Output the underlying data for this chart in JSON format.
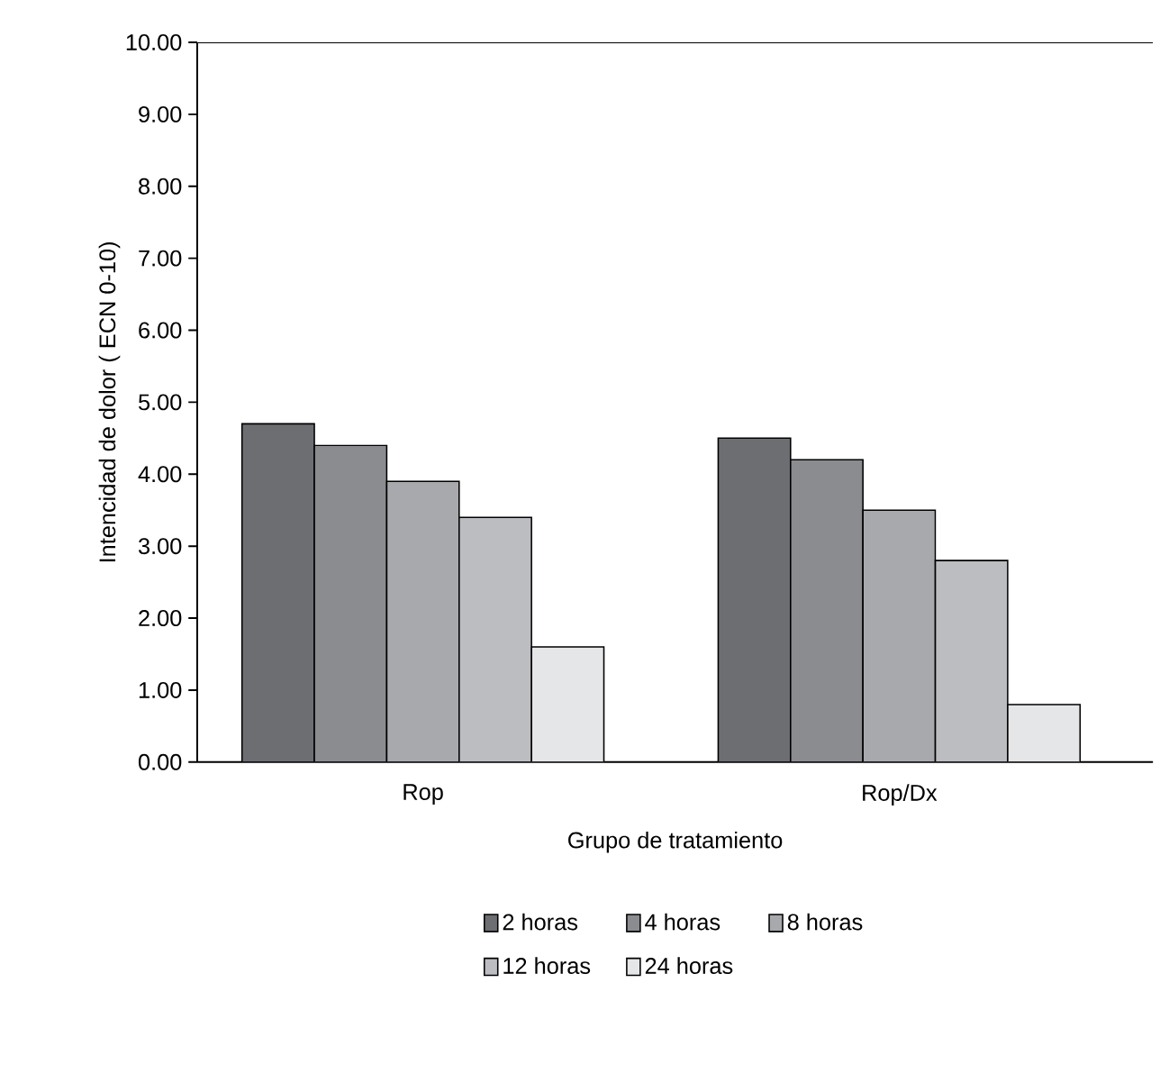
{
  "chart_data": {
    "type": "bar",
    "xlabel": "Grupo de tratamiento",
    "ylabel": "Intencidad de dolor ( ECN 0-10)",
    "categories": [
      "Rop",
      "Rop/Dx"
    ],
    "series": [
      {
        "name": "2 horas",
        "color": "#6d6e72",
        "values": [
          4.7,
          4.5
        ]
      },
      {
        "name": "4 horas",
        "color": "#8b8c90",
        "values": [
          4.4,
          4.2
        ]
      },
      {
        "name": "8 horas",
        "color": "#a8a9ac",
        "values": [
          3.9,
          3.5
        ]
      },
      {
        "name": "12 horas",
        "color": "#bcbdc0",
        "values": [
          3.4,
          2.8
        ]
      },
      {
        "name": "24 horas",
        "color": "#e5e6e7",
        "values": [
          1.6,
          0.8
        ]
      }
    ],
    "ylim": [
      0,
      10
    ],
    "yticks": [
      {
        "value": 0,
        "label": "0.00"
      },
      {
        "value": 1,
        "label": "1.00"
      },
      {
        "value": 2,
        "label": "2.00"
      },
      {
        "value": 3,
        "label": "3.00"
      },
      {
        "value": 4,
        "label": "4.00"
      },
      {
        "value": 5,
        "label": "5.00"
      },
      {
        "value": 6,
        "label": "6.00"
      },
      {
        "value": 7,
        "label": "7.00"
      },
      {
        "value": 8,
        "label": "8.00"
      },
      {
        "value": 9,
        "label": "9.00"
      },
      {
        "value": 10,
        "label": "10.00"
      }
    ],
    "legend": "bottom",
    "grid": false
  }
}
